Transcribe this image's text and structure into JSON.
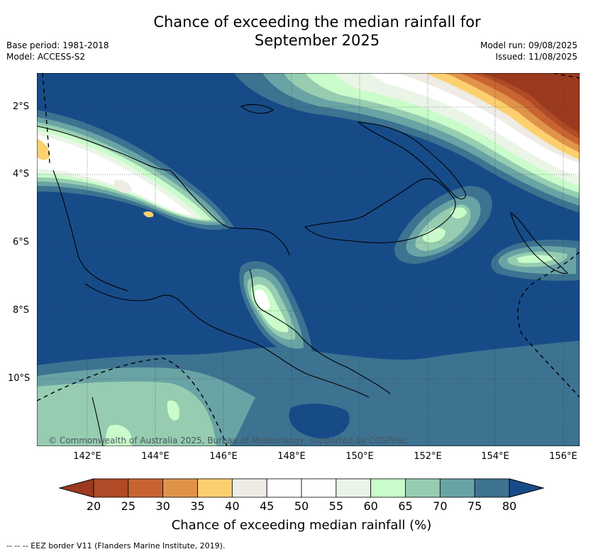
{
  "title": {
    "line1": "Chance of exceeding the median rainfall for",
    "line2": "September 2025"
  },
  "meta_left": {
    "base_period": "Base period: 1981-2018",
    "model": "Model: ACCESS-S2"
  },
  "meta_right": {
    "model_run": "Model run: 09/08/2025",
    "issued": "Issued: 11/08/2025"
  },
  "lat_ticks": [
    "2°S",
    "4°S",
    "6°S",
    "8°S",
    "10°S"
  ],
  "lon_ticks": [
    "142°E",
    "144°E",
    "146°E",
    "148°E",
    "150°E",
    "152°E",
    "154°E",
    "156°E"
  ],
  "credit": "© Commonwealth of Australia 2025, Bureau of Meteorology, supported by COSPPac",
  "colorbar": {
    "labels": [
      "20",
      "25",
      "30",
      "35",
      "40",
      "45",
      "50",
      "55",
      "60",
      "65",
      "70",
      "75",
      "80"
    ],
    "colors": [
      "#9b3a1f",
      "#b04a27",
      "#c96432",
      "#e0944a",
      "#fdd06f",
      "#efebe5",
      "#ffffff",
      "#ffffff",
      "#eaf5e7",
      "#c9fcca",
      "#96cdb1",
      "#6aa3a5",
      "#3d7291",
      "#174b88"
    ],
    "title": "Chance of exceeding median rainfall (%)"
  },
  "footer": "--  --  -- EEZ border V11 (Flanders Marine Institute, 2019)."
}
